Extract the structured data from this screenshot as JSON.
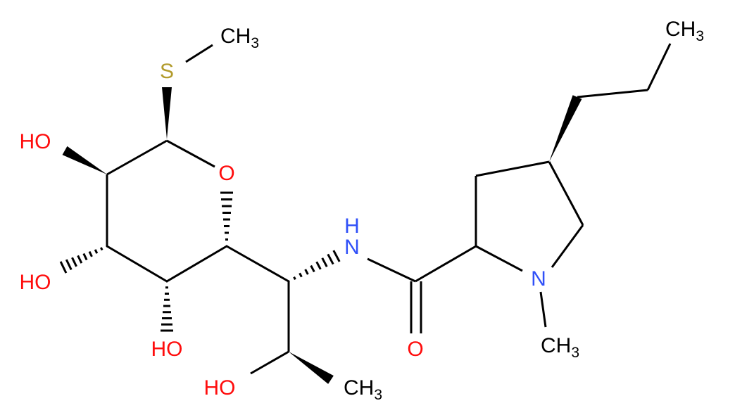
{
  "atoms": [
    {
      "label": "S"
    },
    {
      "label": "CH",
      "subscript": 3
    },
    {
      "label": "HO"
    },
    {
      "label": "O"
    },
    {
      "label": "HO"
    },
    {
      "label": "HO"
    },
    {
      "label": "H"
    },
    {
      "label": "N"
    },
    {
      "label": "HO"
    },
    {
      "label": "CH",
      "subscript": 3
    },
    {
      "label": "O"
    },
    {
      "label": "N"
    },
    {
      "label": "CH",
      "subscript": 3
    },
    {
      "label": "CH",
      "subscript": 3
    }
  ]
}
